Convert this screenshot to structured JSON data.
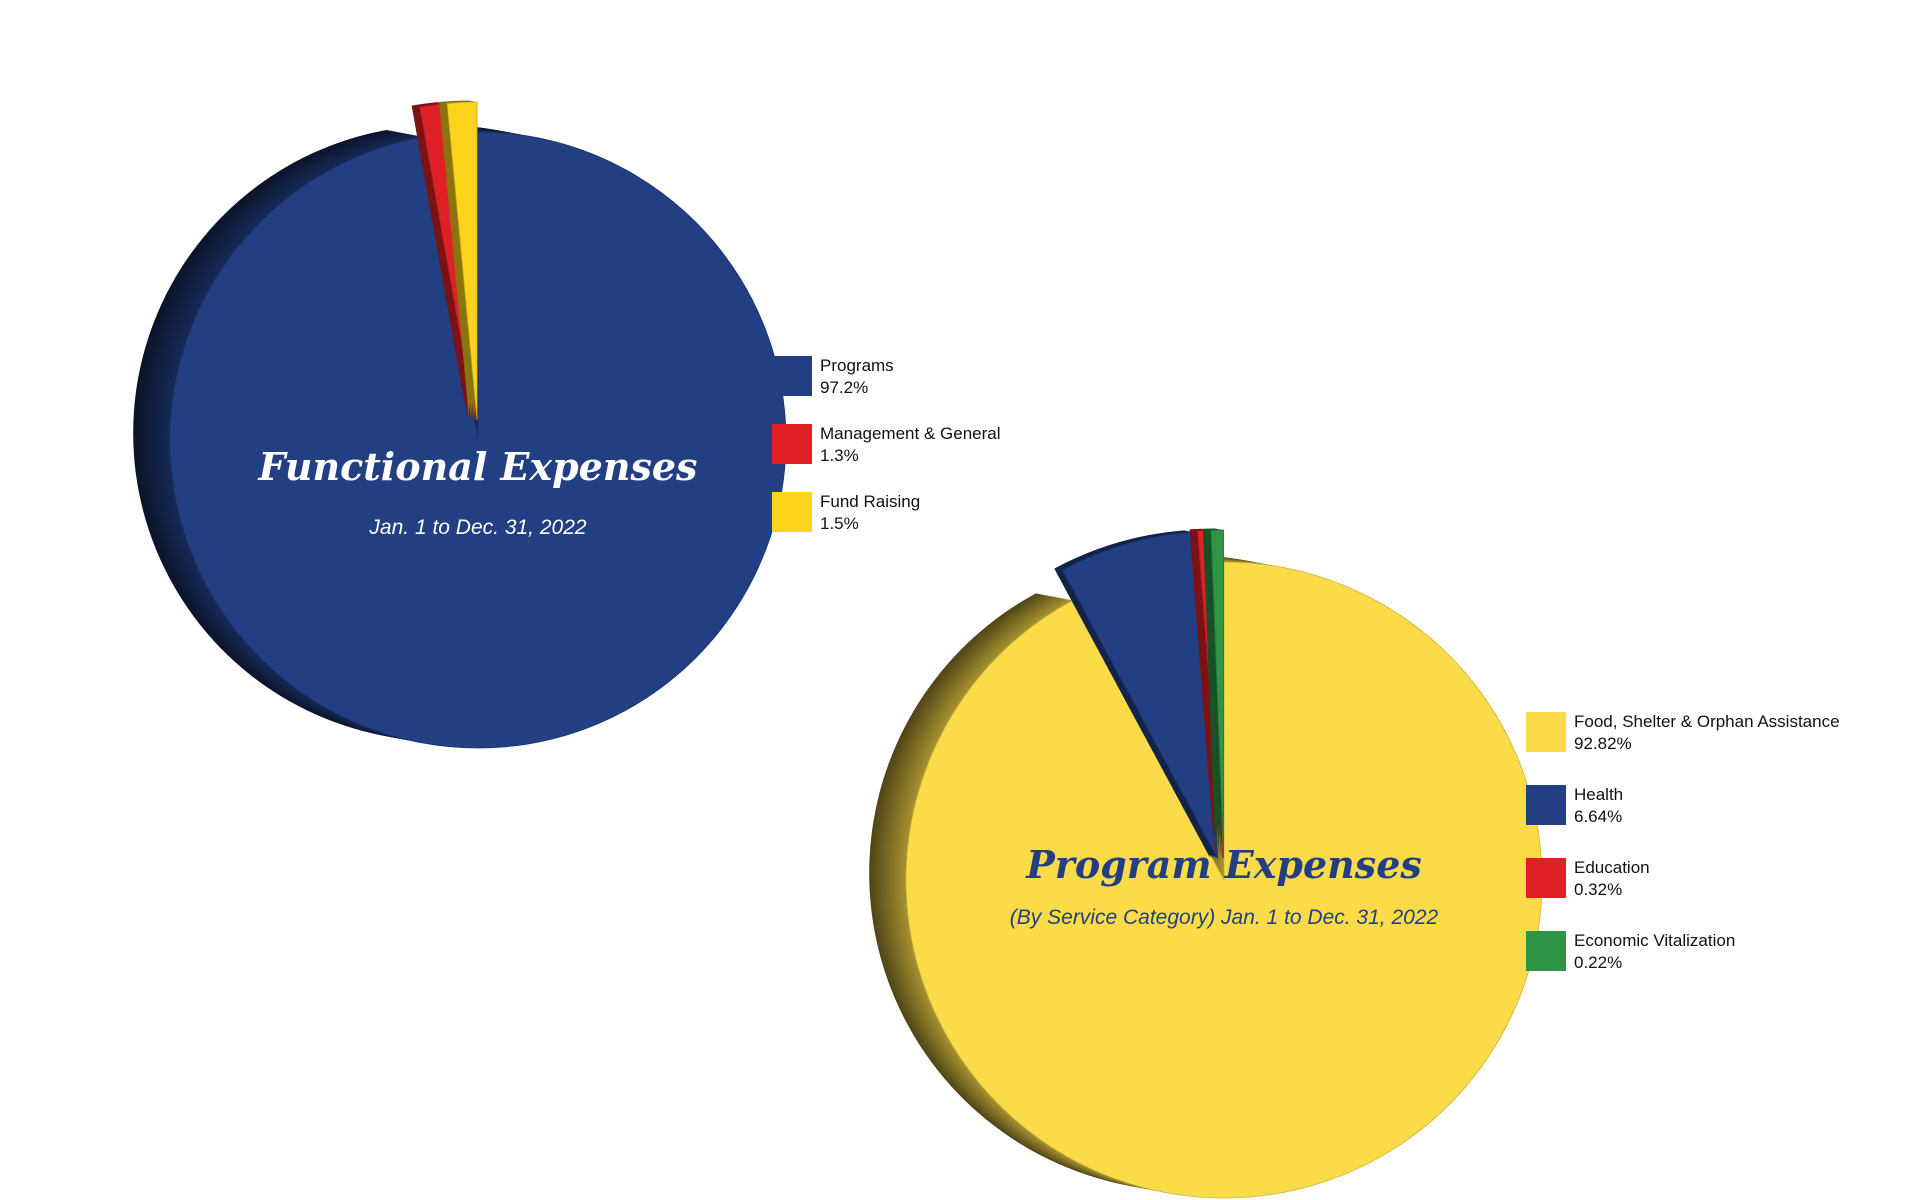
{
  "chart_data": [
    {
      "type": "pie",
      "title": "Functional Expenses",
      "subtitle": "Jan. 1 to Dec. 31, 2022",
      "legend_position": "right",
      "slices": [
        {
          "label": "Programs",
          "value_label": "97.2%",
          "value": 97.2,
          "color": "#223f83",
          "exploded": false
        },
        {
          "label": "Management & General",
          "value_label": "1.3%",
          "value": 1.3,
          "color": "#e02027",
          "exploded": true
        },
        {
          "label": "Fund Raising",
          "value_label": "1.5%",
          "value": 1.5,
          "color": "#fdd31b",
          "exploded": true
        }
      ]
    },
    {
      "type": "pie",
      "title": "Program Expenses",
      "subtitle": "(By Service Category) Jan. 1 to Dec. 31, 2022",
      "legend_position": "right",
      "slices": [
        {
          "label": "Food, Shelter & Orphan Assistance",
          "value_label": "92.82%",
          "value": 92.82,
          "color": "#fbdc48",
          "exploded": false
        },
        {
          "label": "Health",
          "value_label": "6.64%",
          "value": 6.64,
          "color": "#223f83",
          "exploded": true
        },
        {
          "label": "Education",
          "value_label": "0.32%",
          "value": 0.32,
          "color": "#e02027",
          "exploded": true
        },
        {
          "label": "Economic Vitalization",
          "value_label": "0.22%",
          "value": 0.22,
          "color": "#2e9446",
          "exploded": true
        }
      ]
    }
  ]
}
